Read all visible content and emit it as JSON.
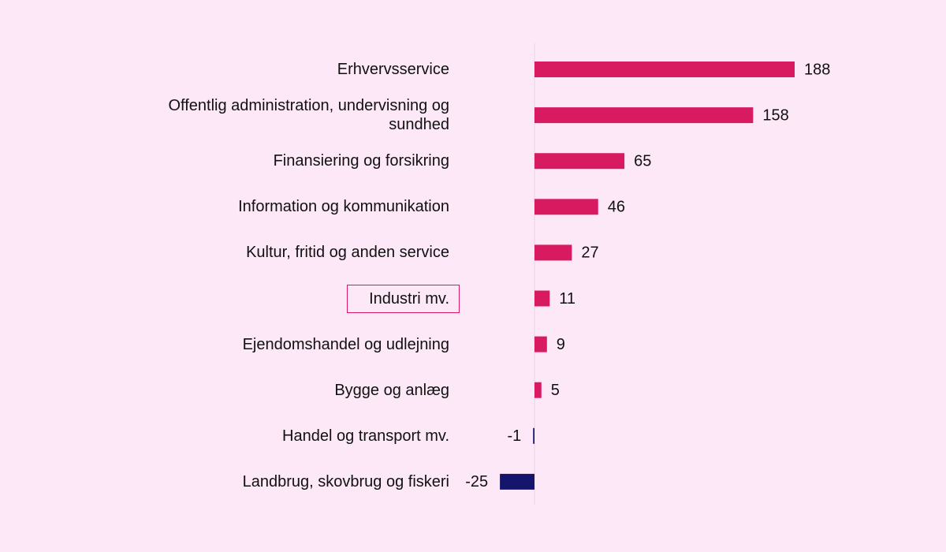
{
  "chart_data": {
    "type": "barh",
    "categories": [
      "Erhvervsservice",
      "Offentlig administration, undervisning og sundhed",
      "Finansiering og forsikring",
      "Information og kommunikation",
      "Kultur, fritid og anden service",
      "Industri mv.",
      "Ejendomshandel og udlejning",
      "Bygge og anlæg",
      "Handel og transport mv.",
      "Landbrug, skovbrug og fiskeri"
    ],
    "values": [
      188,
      158,
      65,
      46,
      27,
      11,
      9,
      5,
      -1,
      -25
    ],
    "color": "#d81b60",
    "negative_color": "#15166b",
    "highlight": "Industri mv."
  }
}
